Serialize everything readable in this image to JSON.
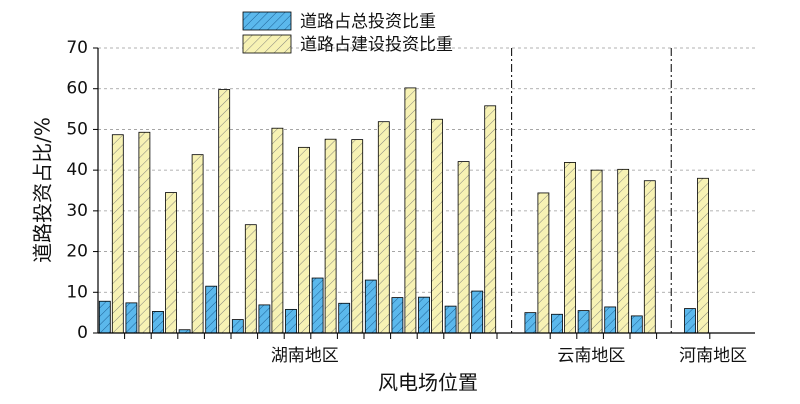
{
  "chart_data": {
    "type": "bar",
    "ylabel": "道路投资占比/%",
    "xlabel": "风电场位置",
    "ylim": [
      0,
      70
    ],
    "yticks": [
      0,
      10,
      20,
      30,
      40,
      50,
      60,
      70
    ],
    "grid": true,
    "series": [
      {
        "name": "道路占总投资比重",
        "color": "#5bb8ec"
      },
      {
        "name": "道路占建设投资比重",
        "color": "#f7f2b4"
      }
    ],
    "groups": [
      {
        "name": "湖南地区",
        "values": [
          [
            7.8,
            7.4,
            5.3,
            0.8,
            11.5,
            3.3,
            6.9,
            5.8,
            13.5,
            7.3,
            13.0,
            8.7,
            8.8,
            6.6,
            10.3
          ],
          [
            48.7,
            49.3,
            34.5,
            43.8,
            59.8,
            26.6,
            50.3,
            45.6,
            47.6,
            47.5,
            51.9,
            60.2,
            52.5,
            42.1,
            55.8
          ]
        ]
      },
      {
        "name": "云南地区",
        "values": [
          [
            5.0,
            4.6,
            5.5,
            6.4,
            4.2
          ],
          [
            34.4,
            41.9,
            40.0,
            40.2,
            37.4
          ]
        ]
      },
      {
        "name": "河南地区",
        "values": [
          [
            6.0
          ],
          [
            38.0
          ]
        ]
      }
    ]
  }
}
